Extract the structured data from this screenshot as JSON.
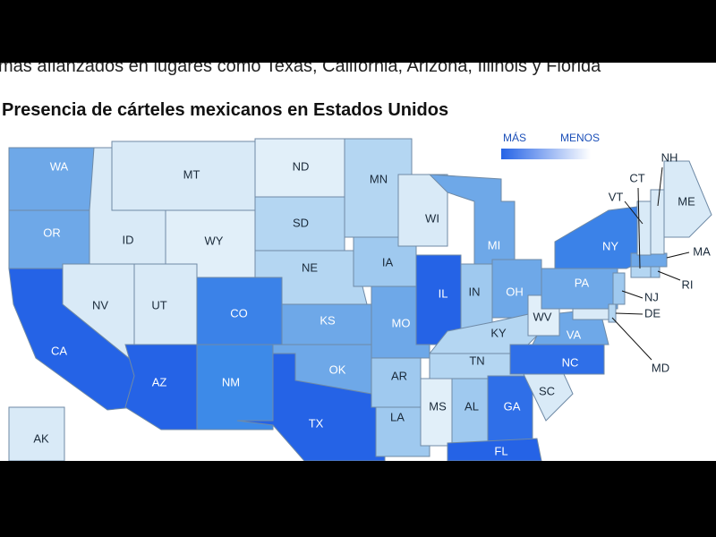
{
  "top_text": "más afianzados en lugares como Texas, California, Arizona, Illinois y Florida",
  "title": "Presencia de cárteles mexicanos en Estados Unidos",
  "legend": {
    "more": "MÁS",
    "less": "MENOS"
  },
  "states": [
    {
      "code": "WA",
      "color": "#6ea8e8"
    },
    {
      "code": "OR",
      "color": "#6ea8e8"
    },
    {
      "code": "CA",
      "color": "#2563e6"
    },
    {
      "code": "NV",
      "color": "#d9eaf7"
    },
    {
      "code": "ID",
      "color": "#d9eaf7"
    },
    {
      "code": "MT",
      "color": "#d9eaf7"
    },
    {
      "code": "WY",
      "color": "#e1eff9"
    },
    {
      "code": "UT",
      "color": "#d9eaf7"
    },
    {
      "code": "CO",
      "color": "#3b82e8"
    },
    {
      "code": "AZ",
      "color": "#2563e6"
    },
    {
      "code": "NM",
      "color": "#3d8ae8"
    },
    {
      "code": "TX",
      "color": "#2563e6"
    },
    {
      "code": "ND",
      "color": "#e1eff9"
    },
    {
      "code": "SD",
      "color": "#b4d6f2"
    },
    {
      "code": "NE",
      "color": "#b4d6f2"
    },
    {
      "code": "KS",
      "color": "#6ea8e8"
    },
    {
      "code": "OK",
      "color": "#6ea8e8"
    },
    {
      "code": "MN",
      "color": "#b4d6f2"
    },
    {
      "code": "IA",
      "color": "#9fc9ef"
    },
    {
      "code": "MO",
      "color": "#6ea8e8"
    },
    {
      "code": "AR",
      "color": "#9fc9ef"
    },
    {
      "code": "LA",
      "color": "#9fc9ef"
    },
    {
      "code": "WI",
      "color": "#d9eaf7"
    },
    {
      "code": "IL",
      "color": "#2563e6"
    },
    {
      "code": "MI",
      "color": "#6ea8e8"
    },
    {
      "code": "IN",
      "color": "#9fc9ef"
    },
    {
      "code": "OH",
      "color": "#6ea8e8"
    },
    {
      "code": "KY",
      "color": "#b4d6f2"
    },
    {
      "code": "TN",
      "color": "#b4d6f2"
    },
    {
      "code": "MS",
      "color": "#e1eff9"
    },
    {
      "code": "AL",
      "color": "#9fc9ef"
    },
    {
      "code": "GA",
      "color": "#2f6fe8"
    },
    {
      "code": "FL",
      "color": "#2563e6"
    },
    {
      "code": "SC",
      "color": "#d9eaf7"
    },
    {
      "code": "NC",
      "color": "#2f6fe8"
    },
    {
      "code": "VA",
      "color": "#6ea8e8"
    },
    {
      "code": "WV",
      "color": "#e1eff9"
    },
    {
      "code": "PA",
      "color": "#6ea8e8"
    },
    {
      "code": "NY",
      "color": "#3b82e8"
    },
    {
      "code": "NJ",
      "color": "#9fc9ef"
    },
    {
      "code": "DE",
      "color": "#b4d6f2"
    },
    {
      "code": "MD",
      "color": "#d9eaf7"
    },
    {
      "code": "MA",
      "color": "#6ea8e8"
    },
    {
      "code": "RI",
      "color": "#9fc9ef"
    },
    {
      "code": "CT",
      "color": "#b4d6f2"
    },
    {
      "code": "VT",
      "color": "#d9eaf7"
    },
    {
      "code": "NH",
      "color": "#d9eaf7"
    },
    {
      "code": "ME",
      "color": "#d9eaf7"
    },
    {
      "code": "AK",
      "color": "#d9eaf7"
    }
  ]
}
